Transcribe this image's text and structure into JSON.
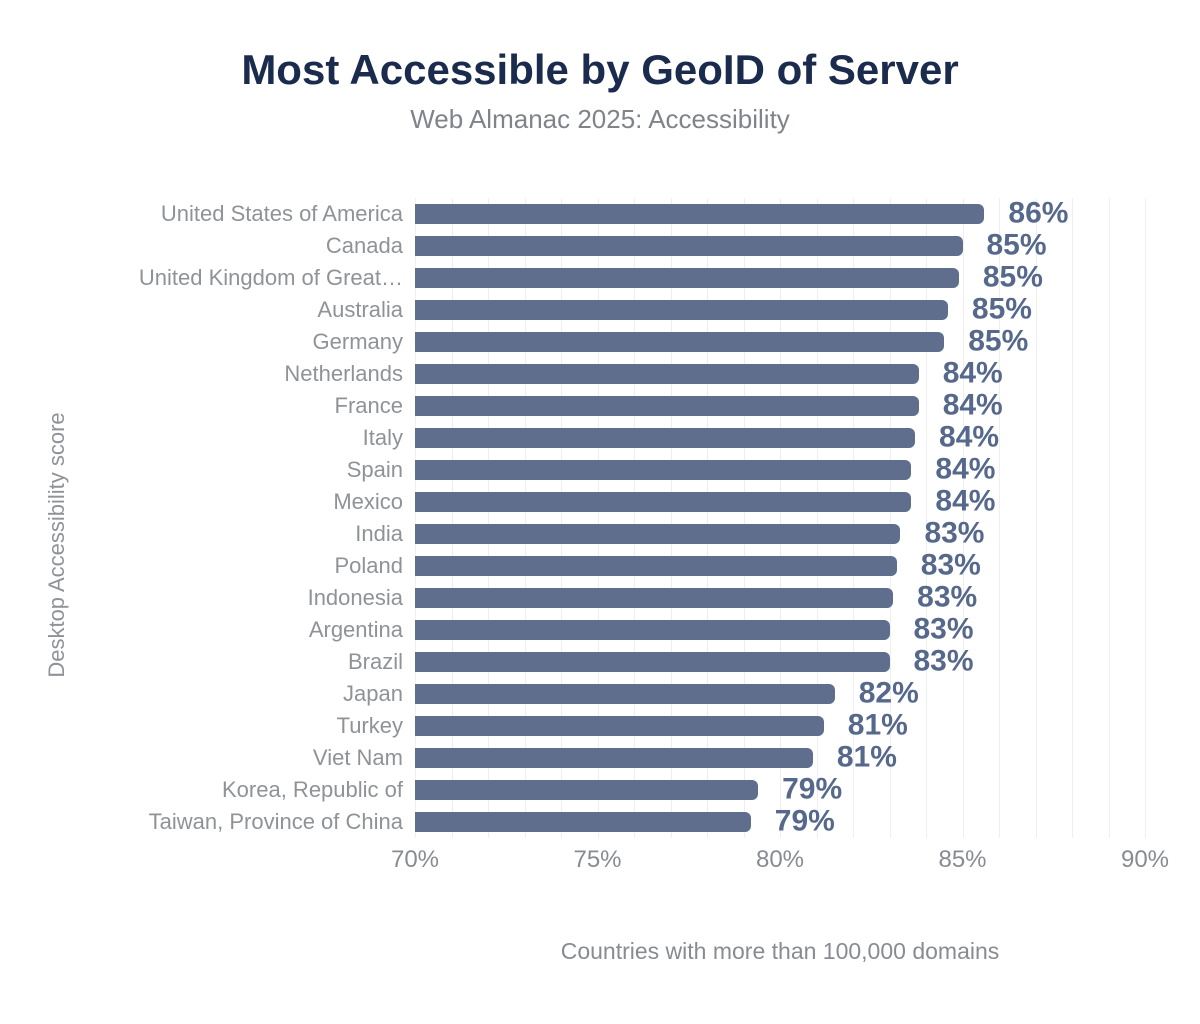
{
  "header": {
    "title": "Most Accessible by GeoID of Server",
    "subtitle": "Web Almanac 2025: Accessibility"
  },
  "chart_data": {
    "type": "bar",
    "orientation": "horizontal",
    "title": "Most Accessible by GeoID of Server",
    "subtitle": "Web Almanac 2025: Accessibility",
    "categories": [
      "United States of America",
      "Canada",
      "United Kingdom of Great…",
      "Australia",
      "Germany",
      "Netherlands",
      "France",
      "Italy",
      "Spain",
      "Mexico",
      "India",
      "Poland",
      "Indonesia",
      "Argentina",
      "Brazil",
      "Japan",
      "Turkey",
      "Viet Nam",
      "Korea, Republic of",
      "Taiwan, Province of China"
    ],
    "values": [
      85.6,
      85.0,
      84.9,
      84.6,
      84.5,
      83.8,
      83.8,
      83.7,
      83.6,
      83.6,
      83.3,
      83.2,
      83.1,
      83.0,
      83.0,
      81.5,
      81.2,
      80.9,
      79.4,
      79.2
    ],
    "labels": [
      "86%",
      "85%",
      "85%",
      "85%",
      "85%",
      "84%",
      "84%",
      "84%",
      "84%",
      "84%",
      "83%",
      "83%",
      "83%",
      "83%",
      "83%",
      "82%",
      "81%",
      "81%",
      "79%",
      "79%"
    ],
    "xlabel": "Countries with more than 100,000 domains",
    "ylabel": "Desktop Accessibility score",
    "xlim": [
      70,
      90
    ],
    "xticks": [
      "70%",
      "75%",
      "80%",
      "85%",
      "90%"
    ],
    "xtick_values": [
      70,
      75,
      80,
      85,
      90
    ],
    "grid": "vertical",
    "grid_step": 1,
    "legend": "none",
    "colors": {
      "bar": "#5f6e8c",
      "value_label": "#56688c",
      "title": "#1a2b4d",
      "subtitle": "#7f848b",
      "category_label": "#8f9398",
      "tick_label": "#888c92",
      "gridline": "#efefef",
      "background": "#ffffff"
    }
  }
}
